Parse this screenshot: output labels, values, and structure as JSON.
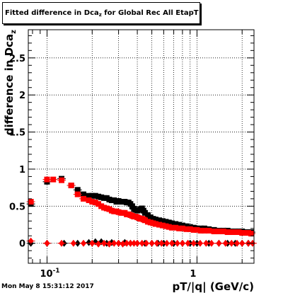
{
  "chart_data": {
    "type": "scatter",
    "title": "Fitted difference in Dca_z for Global Rec All EtapT",
    "title_parts": {
      "main": "Fitted difference in Dca",
      "sub": "z",
      "rest": " for Global Rec All EtapT"
    },
    "xlabel": "pT/|q| (GeV/c)",
    "ylabel": "difference in Dca_z",
    "ylabel_parts": {
      "main": "difference in Dca",
      "sub": "z"
    },
    "x_scale": "log",
    "xlim": [
      0.075,
      2.4
    ],
    "ylim": [
      -0.27,
      2.88
    ],
    "grid": true,
    "x_tick_labels": [
      {
        "value": 0.1,
        "base": "10",
        "exp": "-1"
      },
      {
        "value": 1,
        "base": "1",
        "exp": ""
      }
    ],
    "y_ticks": [
      0,
      0.5,
      1,
      1.5,
      2,
      2.5
    ],
    "y_tick_labels": [
      "0",
      "0.5",
      "1",
      "1.5",
      "2",
      "2.5"
    ],
    "series": [
      {
        "marker": "square",
        "color": "#000000",
        "points": [
          [
            0.078,
            0.53
          ],
          [
            0.1,
            0.83
          ],
          [
            0.125,
            0.87
          ],
          [
            0.145,
            0.78
          ],
          [
            0.16,
            0.72
          ],
          [
            0.175,
            0.66
          ],
          [
            0.19,
            0.64
          ],
          [
            0.2,
            0.64
          ],
          [
            0.21,
            0.64
          ],
          [
            0.22,
            0.63
          ],
          [
            0.23,
            0.62
          ],
          [
            0.24,
            0.61
          ],
          [
            0.25,
            0.61
          ],
          [
            0.26,
            0.59
          ],
          [
            0.27,
            0.58
          ],
          [
            0.28,
            0.58
          ],
          [
            0.29,
            0.56
          ],
          [
            0.3,
            0.57
          ],
          [
            0.31,
            0.56
          ],
          [
            0.32,
            0.56
          ],
          [
            0.33,
            0.56
          ],
          [
            0.34,
            0.55
          ],
          [
            0.35,
            0.55
          ],
          [
            0.36,
            0.53
          ],
          [
            0.37,
            0.5
          ],
          [
            0.38,
            0.46
          ],
          [
            0.39,
            0.45
          ],
          [
            0.4,
            0.44
          ],
          [
            0.41,
            0.45
          ],
          [
            0.42,
            0.46
          ],
          [
            0.43,
            0.47
          ],
          [
            0.44,
            0.44
          ],
          [
            0.45,
            0.41
          ],
          [
            0.47,
            0.38
          ],
          [
            0.49,
            0.35
          ],
          [
            0.51,
            0.33
          ],
          [
            0.53,
            0.32
          ],
          [
            0.56,
            0.31
          ],
          [
            0.59,
            0.3
          ],
          [
            0.62,
            0.29
          ],
          [
            0.65,
            0.28
          ],
          [
            0.68,
            0.27
          ],
          [
            0.72,
            0.26
          ],
          [
            0.76,
            0.25
          ],
          [
            0.8,
            0.24
          ],
          [
            0.85,
            0.23
          ],
          [
            0.9,
            0.22
          ],
          [
            0.95,
            0.21
          ],
          [
            1.0,
            0.2
          ],
          [
            1.06,
            0.2
          ],
          [
            1.12,
            0.2
          ],
          [
            1.2,
            0.19
          ],
          [
            1.3,
            0.18
          ],
          [
            1.4,
            0.17
          ],
          [
            1.5,
            0.17
          ],
          [
            1.6,
            0.17
          ],
          [
            1.7,
            0.16
          ],
          [
            1.8,
            0.16
          ],
          [
            1.9,
            0.16
          ],
          [
            2.0,
            0.16
          ],
          [
            2.1,
            0.15
          ],
          [
            2.2,
            0.15
          ],
          [
            2.3,
            0.15
          ]
        ]
      },
      {
        "marker": "square",
        "color": "#ff0000",
        "points": [
          [
            0.078,
            0.56
          ],
          [
            0.1,
            0.86
          ],
          [
            0.11,
            0.86
          ],
          [
            0.125,
            0.85
          ],
          [
            0.145,
            0.78
          ],
          [
            0.16,
            0.66
          ],
          [
            0.175,
            0.6
          ],
          [
            0.19,
            0.58
          ],
          [
            0.2,
            0.56
          ],
          [
            0.21,
            0.55
          ],
          [
            0.22,
            0.53
          ],
          [
            0.23,
            0.5
          ],
          [
            0.24,
            0.48
          ],
          [
            0.25,
            0.47
          ],
          [
            0.26,
            0.46
          ],
          [
            0.27,
            0.44
          ],
          [
            0.28,
            0.43
          ],
          [
            0.29,
            0.43
          ],
          [
            0.3,
            0.42
          ],
          [
            0.31,
            0.41
          ],
          [
            0.32,
            0.41
          ],
          [
            0.33,
            0.41
          ],
          [
            0.34,
            0.39
          ],
          [
            0.35,
            0.39
          ],
          [
            0.36,
            0.38
          ],
          [
            0.37,
            0.37
          ],
          [
            0.38,
            0.36
          ],
          [
            0.39,
            0.36
          ],
          [
            0.4,
            0.35
          ],
          [
            0.41,
            0.34
          ],
          [
            0.42,
            0.33
          ],
          [
            0.43,
            0.33
          ],
          [
            0.44,
            0.32
          ],
          [
            0.45,
            0.31
          ],
          [
            0.47,
            0.29
          ],
          [
            0.49,
            0.28
          ],
          [
            0.51,
            0.27
          ],
          [
            0.53,
            0.26
          ],
          [
            0.56,
            0.25
          ],
          [
            0.59,
            0.24
          ],
          [
            0.62,
            0.23
          ],
          [
            0.65,
            0.22
          ],
          [
            0.68,
            0.21
          ],
          [
            0.72,
            0.21
          ],
          [
            0.76,
            0.2
          ],
          [
            0.8,
            0.2
          ],
          [
            0.85,
            0.19
          ],
          [
            0.9,
            0.19
          ],
          [
            0.95,
            0.18
          ],
          [
            1.0,
            0.18
          ],
          [
            1.06,
            0.17
          ],
          [
            1.12,
            0.17
          ],
          [
            1.2,
            0.17
          ],
          [
            1.3,
            0.16
          ],
          [
            1.4,
            0.16
          ],
          [
            1.5,
            0.16
          ],
          [
            1.6,
            0.15
          ],
          [
            1.7,
            0.15
          ],
          [
            1.8,
            0.15
          ],
          [
            1.9,
            0.15
          ],
          [
            2.0,
            0.14
          ],
          [
            2.1,
            0.14
          ],
          [
            2.2,
            0.14
          ],
          [
            2.3,
            0.13
          ]
        ]
      },
      {
        "marker": "diamond",
        "color": "#000000",
        "points": [
          [
            0.078,
            0.0
          ],
          [
            0.1,
            0.0
          ],
          [
            0.13,
            0.0
          ],
          [
            0.16,
            0.0
          ],
          [
            0.19,
            0.01
          ],
          [
            0.21,
            0.02
          ],
          [
            0.23,
            0.02
          ],
          [
            0.25,
            0.0
          ],
          [
            0.27,
            0.01
          ],
          [
            0.3,
            0.0
          ],
          [
            0.33,
            0.01
          ],
          [
            0.36,
            0.0
          ],
          [
            0.4,
            0.0
          ],
          [
            0.45,
            0.0
          ],
          [
            0.5,
            0.0
          ],
          [
            0.55,
            0.0
          ],
          [
            0.6,
            0.0
          ],
          [
            0.7,
            0.0
          ],
          [
            0.8,
            0.0
          ],
          [
            0.9,
            0.0
          ],
          [
            1.0,
            0.0
          ],
          [
            1.2,
            0.0
          ],
          [
            1.4,
            0.0
          ],
          [
            1.6,
            0.0
          ],
          [
            1.8,
            0.0
          ],
          [
            2.0,
            0.0
          ],
          [
            2.2,
            0.0
          ]
        ]
      },
      {
        "marker": "diamond",
        "color": "#ff0000",
        "points": [
          [
            0.078,
            0.03
          ],
          [
            0.1,
            0.0
          ],
          [
            0.125,
            0.0
          ],
          [
            0.15,
            0.0
          ],
          [
            0.175,
            0.0
          ],
          [
            0.2,
            0.0
          ],
          [
            0.22,
            -0.01
          ],
          [
            0.24,
            0.0
          ],
          [
            0.26,
            -0.01
          ],
          [
            0.28,
            0.0
          ],
          [
            0.3,
            0.0
          ],
          [
            0.32,
            -0.01
          ],
          [
            0.34,
            0.0
          ],
          [
            0.36,
            0.0
          ],
          [
            0.38,
            0.0
          ],
          [
            0.4,
            0.0
          ],
          [
            0.43,
            0.0
          ],
          [
            0.46,
            0.0
          ],
          [
            0.5,
            0.0
          ],
          [
            0.54,
            0.0
          ],
          [
            0.58,
            0.0
          ],
          [
            0.63,
            0.0
          ],
          [
            0.68,
            0.0
          ],
          [
            0.74,
            0.0
          ],
          [
            0.8,
            0.0
          ],
          [
            0.87,
            0.0
          ],
          [
            0.95,
            0.0
          ],
          [
            1.05,
            0.0
          ],
          [
            1.15,
            0.0
          ],
          [
            1.25,
            0.0
          ],
          [
            1.4,
            0.0
          ],
          [
            1.55,
            0.0
          ],
          [
            1.7,
            0.0
          ],
          [
            1.85,
            0.0
          ],
          [
            2.0,
            0.0
          ],
          [
            2.2,
            0.0
          ],
          [
            2.35,
            0.0
          ]
        ]
      }
    ]
  },
  "timestamp": "Mon May  8 15:31:12 2017"
}
